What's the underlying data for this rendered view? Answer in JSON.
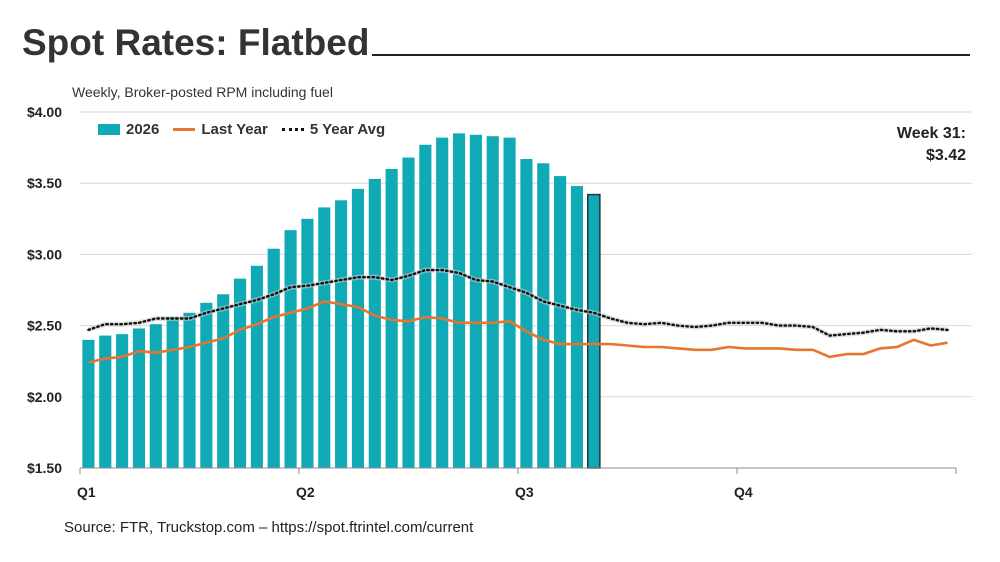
{
  "title": "Spot Rates: Flatbed",
  "subtitle": "Weekly, Broker-posted RPM including fuel",
  "source": "Source: FTR, Truckstop.com – https://spot.ftrintel.com/current",
  "callout": {
    "line1": "Week 31:",
    "line2": "$3.42"
  },
  "colors": {
    "bar": "#10a9b6",
    "last_year": "#e8742e",
    "five_year": "#111111",
    "highlight_border": "#1b3a3d"
  },
  "chart_data": {
    "type": "bar",
    "ylim": [
      1.5,
      4.0
    ],
    "yticks": [
      "$1.50",
      "$2.00",
      "$2.50",
      "$3.00",
      "$3.50",
      "$4.00"
    ],
    "ytick_values": [
      1.5,
      2.0,
      2.5,
      3.0,
      3.5,
      4.0
    ],
    "xticks": [
      {
        "label": "Q1",
        "week": 1
      },
      {
        "label": "Q2",
        "week": 14
      },
      {
        "label": "Q3",
        "week": 27
      },
      {
        "label": "Q4",
        "week": 40
      }
    ],
    "weeks": 52,
    "grid": true,
    "legend_position": "top-left",
    "highlight_week": 31,
    "series": [
      {
        "name": "2026",
        "kind": "bar",
        "values": [
          2.4,
          2.43,
          2.44,
          2.48,
          2.51,
          2.56,
          2.59,
          2.66,
          2.72,
          2.83,
          2.92,
          3.04,
          3.17,
          3.25,
          3.33,
          3.38,
          3.46,
          3.53,
          3.6,
          3.68,
          3.77,
          3.82,
          3.85,
          3.84,
          3.83,
          3.82,
          3.67,
          3.64,
          3.55,
          3.48,
          3.42
        ]
      },
      {
        "name": "Last Year",
        "kind": "line",
        "values": [
          2.24,
          2.27,
          2.28,
          2.32,
          2.31,
          2.33,
          2.35,
          2.38,
          2.41,
          2.47,
          2.51,
          2.56,
          2.59,
          2.62,
          2.67,
          2.65,
          2.63,
          2.57,
          2.54,
          2.53,
          2.56,
          2.55,
          2.52,
          2.52,
          2.52,
          2.53,
          2.46,
          2.4,
          2.37,
          2.37,
          2.37,
          2.37,
          2.36,
          2.35,
          2.35,
          2.34,
          2.33,
          2.33,
          2.35,
          2.34,
          2.34,
          2.34,
          2.33,
          2.33,
          2.28,
          2.3,
          2.3,
          2.34,
          2.35,
          2.4,
          2.36,
          2.38
        ]
      },
      {
        "name": "5 Year Avg",
        "kind": "dotted",
        "values": [
          2.47,
          2.51,
          2.51,
          2.52,
          2.55,
          2.55,
          2.55,
          2.59,
          2.62,
          2.65,
          2.68,
          2.72,
          2.77,
          2.78,
          2.8,
          2.82,
          2.84,
          2.84,
          2.82,
          2.85,
          2.89,
          2.89,
          2.87,
          2.82,
          2.81,
          2.77,
          2.73,
          2.67,
          2.64,
          2.61,
          2.59,
          2.55,
          2.52,
          2.51,
          2.52,
          2.5,
          2.49,
          2.5,
          2.52,
          2.52,
          2.52,
          2.5,
          2.5,
          2.49,
          2.43,
          2.44,
          2.45,
          2.47,
          2.46,
          2.46,
          2.48,
          2.47
        ]
      }
    ]
  }
}
